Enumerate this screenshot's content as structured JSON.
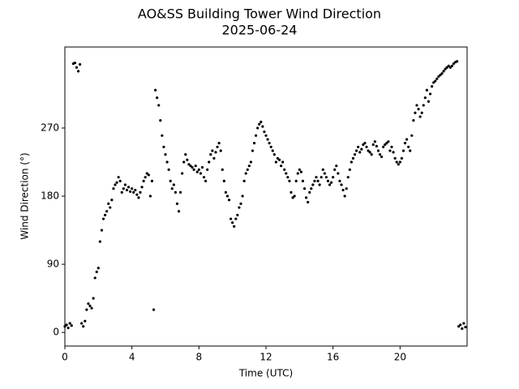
{
  "chart_data": {
    "type": "scatter",
    "title": "AO&SS Building Tower Wind Direction",
    "subtitle": "2025-06-24",
    "x_label": "Time (UTC)",
    "y_label": "Wind Direction (°)",
    "color": "#000000",
    "xlim": [
      0,
      24
    ],
    "xticks": [
      0,
      4,
      8,
      12,
      16,
      20
    ],
    "ylim": [
      -18,
      377
    ],
    "yticks": [
      0,
      90,
      180,
      270
    ],
    "x": [
      0,
      0.1,
      0.2,
      0.3,
      0.4,
      0.5,
      0.6,
      0.7,
      0.8,
      0.9,
      1,
      1.1,
      1.2,
      1.3,
      1.4,
      1.5,
      1.6,
      1.7,
      1.8,
      1.9,
      2,
      2.1,
      2.2,
      2.3,
      2.4,
      2.5,
      2.6,
      2.7,
      2.8,
      2.9,
      3,
      3.1,
      3.2,
      3.3,
      3.4,
      3.5,
      3.6,
      3.7,
      3.8,
      3.9,
      4,
      4.1,
      4.2,
      4.3,
      4.4,
      4.5,
      4.6,
      4.7,
      4.8,
      4.9,
      5,
      5.1,
      5.2,
      5.3,
      5.4,
      5.5,
      5.6,
      5.7,
      5.8,
      5.9,
      6,
      6.1,
      6.2,
      6.3,
      6.4,
      6.5,
      6.6,
      6.7,
      6.8,
      6.9,
      7,
      7.1,
      7.2,
      7.3,
      7.4,
      7.5,
      7.6,
      7.7,
      7.8,
      7.9,
      8,
      8.1,
      8.2,
      8.3,
      8.4,
      8.5,
      8.6,
      8.7,
      8.8,
      8.9,
      9,
      9.1,
      9.2,
      9.3,
      9.4,
      9.5,
      9.6,
      9.7,
      9.8,
      9.9,
      10,
      10.1,
      10.2,
      10.3,
      10.4,
      10.5,
      10.6,
      10.7,
      10.8,
      10.9,
      11,
      11.1,
      11.2,
      11.3,
      11.4,
      11.5,
      11.6,
      11.7,
      11.8,
      11.9,
      12,
      12.1,
      12.2,
      12.3,
      12.4,
      12.5,
      12.6,
      12.7,
      12.8,
      12.9,
      13,
      13.1,
      13.2,
      13.3,
      13.4,
      13.5,
      13.6,
      13.7,
      13.8,
      13.9,
      14,
      14.1,
      14.2,
      14.3,
      14.4,
      14.5,
      14.6,
      14.7,
      14.8,
      14.9,
      15,
      15.1,
      15.2,
      15.3,
      15.4,
      15.5,
      15.6,
      15.7,
      15.8,
      15.9,
      16,
      16.1,
      16.2,
      16.3,
      16.4,
      16.5,
      16.6,
      16.7,
      16.8,
      16.9,
      17,
      17.1,
      17.2,
      17.3,
      17.4,
      17.5,
      17.6,
      17.7,
      17.8,
      17.9,
      18,
      18.1,
      18.2,
      18.3,
      18.4,
      18.5,
      18.6,
      18.7,
      18.8,
      18.9,
      19,
      19.1,
      19.2,
      19.3,
      19.4,
      19.5,
      19.6,
      19.7,
      19.8,
      19.9,
      20,
      20.1,
      20.2,
      20.3,
      20.4,
      20.5,
      20.6,
      20.7,
      20.8,
      20.9,
      21,
      21.1,
      21.2,
      21.3,
      21.4,
      21.5,
      21.6,
      21.7,
      21.8,
      21.9,
      22,
      22.1,
      22.2,
      22.3,
      22.4,
      22.5,
      22.6,
      22.7,
      22.8,
      22.9,
      23,
      23.1,
      23.2,
      23.3,
      23.4,
      23.5,
      23.6,
      23.7,
      23.8,
      23.9
    ],
    "values": [
      8,
      10,
      6,
      12,
      9,
      355,
      356,
      350,
      345,
      354,
      12,
      8,
      15,
      30,
      38,
      35,
      32,
      45,
      72,
      80,
      85,
      120,
      135,
      150,
      155,
      160,
      170,
      165,
      175,
      190,
      195,
      198,
      205,
      200,
      185,
      190,
      195,
      188,
      192,
      186,
      190,
      185,
      188,
      182,
      178,
      185,
      192,
      200,
      205,
      210,
      208,
      180,
      200,
      30,
      320,
      310,
      300,
      280,
      260,
      245,
      235,
      225,
      215,
      200,
      190,
      195,
      185,
      170,
      160,
      185,
      210,
      225,
      235,
      228,
      222,
      220,
      218,
      215,
      220,
      212,
      215,
      210,
      218,
      205,
      200,
      215,
      225,
      235,
      240,
      230,
      238,
      245,
      250,
      240,
      215,
      200,
      185,
      180,
      175,
      150,
      145,
      140,
      150,
      155,
      165,
      170,
      180,
      200,
      210,
      215,
      220,
      225,
      240,
      250,
      260,
      270,
      275,
      278,
      272,
      265,
      260,
      255,
      250,
      245,
      240,
      235,
      225,
      230,
      228,
      220,
      225,
      215,
      210,
      205,
      200,
      185,
      178,
      180,
      200,
      210,
      215,
      212,
      200,
      190,
      178,
      172,
      185,
      190,
      195,
      200,
      205,
      200,
      195,
      205,
      215,
      210,
      205,
      200,
      195,
      198,
      205,
      215,
      220,
      210,
      200,
      195,
      188,
      180,
      190,
      205,
      215,
      225,
      230,
      235,
      240,
      245,
      238,
      242,
      248,
      250,
      245,
      240,
      238,
      235,
      248,
      252,
      246,
      240,
      235,
      232,
      245,
      248,
      250,
      252,
      240,
      245,
      238,
      230,
      225,
      222,
      225,
      230,
      240,
      250,
      255,
      245,
      240,
      260,
      280,
      290,
      300,
      295,
      285,
      290,
      300,
      310,
      320,
      305,
      315,
      325,
      330,
      332,
      335,
      338,
      340,
      342,
      345,
      348,
      350,
      352,
      350,
      352,
      355,
      357,
      358,
      8,
      10,
      5,
      12,
      7
    ]
  }
}
